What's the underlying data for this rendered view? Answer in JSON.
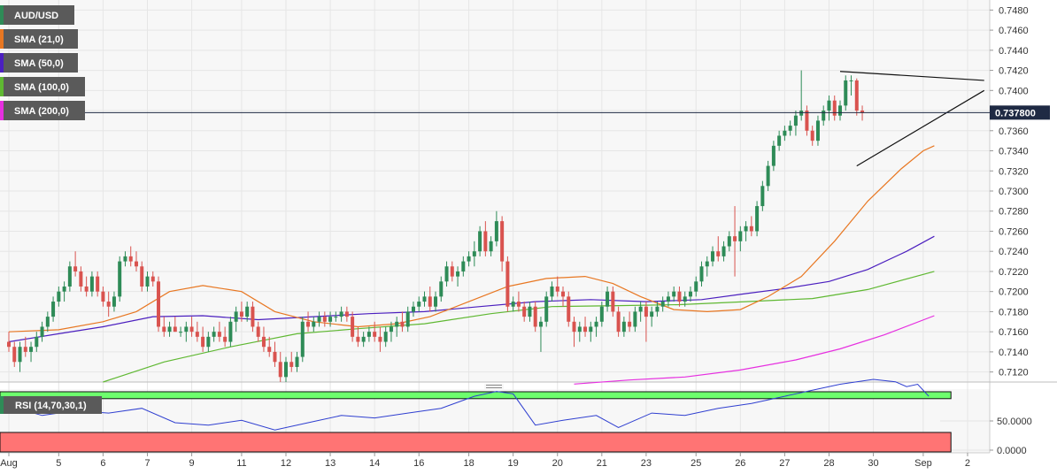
{
  "colors": {
    "up": "#2e8b57",
    "down": "#d9534f",
    "sma21": "#e87722",
    "sma50": "#4b1fbf",
    "sma100": "#5fb832",
    "sma200": "#e62fe0",
    "rsi_line": "#2f3fd0",
    "rsi_upper_band": "#6dff6d",
    "rsi_lower_band": "#ff7474",
    "grid": "#e6e6e6",
    "legend_bg": "#5a5a5a",
    "price_label_bg": "#1f2a44",
    "trendline": "#111111"
  },
  "legend": [
    {
      "label": "AUD/USD",
      "swatch": "#2e8b57"
    },
    {
      "label": "SMA (21,0)",
      "swatch": "#e87722"
    },
    {
      "label": "SMA (50,0)",
      "swatch": "#4b1fbf"
    },
    {
      "label": "SMA (100,0)",
      "swatch": "#5fb832"
    },
    {
      "label": "SMA (200,0)",
      "swatch": "#e62fe0"
    }
  ],
  "current_price": {
    "value": 0.7378,
    "label": "0.737800"
  },
  "rsi_panel": {
    "label": "RSI (14,70,30,1)",
    "tick_labels": [
      "50.0000",
      "0.0000"
    ]
  },
  "chart_data": {
    "type": "candlestick",
    "symbol": "AUD/USD",
    "ylim": [
      0.711,
      0.749
    ],
    "y_ticks": [
      "0.7480",
      "0.7460",
      "0.7440",
      "0.7420",
      "0.7400",
      "0.7380",
      "0.7360",
      "0.7340",
      "0.7320",
      "0.7300",
      "0.7280",
      "0.7260",
      "0.7240",
      "0.7220",
      "0.7200",
      "0.7180",
      "0.7160",
      "0.7140",
      "0.7120"
    ],
    "x_labels": [
      {
        "label": "Aug",
        "index": 0
      },
      {
        "label": "5",
        "index": 9
      },
      {
        "label": "6",
        "index": 17
      },
      {
        "label": "7",
        "index": 25
      },
      {
        "label": "9",
        "index": 33
      },
      {
        "label": "11",
        "index": 42
      },
      {
        "label": "12",
        "index": 50
      },
      {
        "label": "13",
        "index": 58
      },
      {
        "label": "14",
        "index": 66
      },
      {
        "label": "16",
        "index": 74
      },
      {
        "label": "18",
        "index": 83
      },
      {
        "label": "19",
        "index": 91
      },
      {
        "label": "20",
        "index": 99
      },
      {
        "label": "21",
        "index": 107
      },
      {
        "label": "23",
        "index": 115
      },
      {
        "label": "25",
        "index": 124
      },
      {
        "label": "26",
        "index": 132
      },
      {
        "label": "27",
        "index": 140
      },
      {
        "label": "28",
        "index": 148
      },
      {
        "label": "30",
        "index": 156
      },
      {
        "label": "Sep",
        "index": 165
      },
      {
        "label": "2",
        "index": 173
      }
    ],
    "candles": [
      [
        0.715,
        0.716,
        0.714,
        0.7145
      ],
      [
        0.7145,
        0.715,
        0.7125,
        0.713
      ],
      [
        0.713,
        0.715,
        0.712,
        0.7145
      ],
      [
        0.7145,
        0.7155,
        0.7135,
        0.714
      ],
      [
        0.714,
        0.715,
        0.713,
        0.7145
      ],
      [
        0.7145,
        0.716,
        0.714,
        0.7155
      ],
      [
        0.7155,
        0.717,
        0.715,
        0.7165
      ],
      [
        0.7165,
        0.718,
        0.716,
        0.7175
      ],
      [
        0.7175,
        0.7195,
        0.717,
        0.719
      ],
      [
        0.719,
        0.7205,
        0.7185,
        0.72
      ],
      [
        0.72,
        0.721,
        0.719,
        0.7205
      ],
      [
        0.7205,
        0.723,
        0.72,
        0.7225
      ],
      [
        0.7225,
        0.724,
        0.7215,
        0.722
      ],
      [
        0.722,
        0.7225,
        0.72,
        0.7205
      ],
      [
        0.7205,
        0.7215,
        0.7195,
        0.72
      ],
      [
        0.72,
        0.722,
        0.7195,
        0.7215
      ],
      [
        0.7215,
        0.722,
        0.7195,
        0.72
      ],
      [
        0.72,
        0.7205,
        0.7185,
        0.719
      ],
      [
        0.719,
        0.72,
        0.7175,
        0.7185
      ],
      [
        0.7185,
        0.72,
        0.718,
        0.7195
      ],
      [
        0.7195,
        0.7235,
        0.719,
        0.723
      ],
      [
        0.723,
        0.724,
        0.7225,
        0.7235
      ],
      [
        0.7235,
        0.7245,
        0.7225,
        0.723
      ],
      [
        0.723,
        0.724,
        0.722,
        0.7225
      ],
      [
        0.7225,
        0.723,
        0.72,
        0.7205
      ],
      [
        0.7205,
        0.722,
        0.72,
        0.7215
      ],
      [
        0.7215,
        0.722,
        0.7205,
        0.721
      ],
      [
        0.721,
        0.7215,
        0.716,
        0.7165
      ],
      [
        0.7165,
        0.7175,
        0.7155,
        0.716
      ],
      [
        0.716,
        0.717,
        0.7155,
        0.7165
      ],
      [
        0.7165,
        0.7175,
        0.716,
        0.716
      ],
      [
        0.716,
        0.7165,
        0.7155,
        0.716
      ],
      [
        0.716,
        0.717,
        0.715,
        0.7165
      ],
      [
        0.7165,
        0.7175,
        0.7155,
        0.716
      ],
      [
        0.716,
        0.717,
        0.715,
        0.7155
      ],
      [
        0.7155,
        0.7165,
        0.714,
        0.7145
      ],
      [
        0.7145,
        0.716,
        0.714,
        0.7155
      ],
      [
        0.7155,
        0.7165,
        0.715,
        0.716
      ],
      [
        0.716,
        0.717,
        0.715,
        0.7155
      ],
      [
        0.7155,
        0.7165,
        0.7145,
        0.715
      ],
      [
        0.715,
        0.7175,
        0.7145,
        0.717
      ],
      [
        0.717,
        0.7185,
        0.716,
        0.718
      ],
      [
        0.718,
        0.719,
        0.717,
        0.7175
      ],
      [
        0.7175,
        0.719,
        0.717,
        0.7185
      ],
      [
        0.7185,
        0.719,
        0.716,
        0.7165
      ],
      [
        0.7165,
        0.717,
        0.715,
        0.7155
      ],
      [
        0.7155,
        0.7165,
        0.714,
        0.7145
      ],
      [
        0.7145,
        0.7155,
        0.7135,
        0.714
      ],
      [
        0.714,
        0.715,
        0.7125,
        0.713
      ],
      [
        0.713,
        0.714,
        0.711,
        0.7115
      ],
      [
        0.7115,
        0.7135,
        0.711,
        0.713
      ],
      [
        0.713,
        0.714,
        0.712,
        0.7125
      ],
      [
        0.7125,
        0.714,
        0.712,
        0.7135
      ],
      [
        0.7135,
        0.7175,
        0.713,
        0.717
      ],
      [
        0.717,
        0.718,
        0.716,
        0.7165
      ],
      [
        0.7165,
        0.7175,
        0.716,
        0.717
      ],
      [
        0.717,
        0.718,
        0.7165,
        0.7175
      ],
      [
        0.7175,
        0.718,
        0.7165,
        0.717
      ],
      [
        0.717,
        0.718,
        0.7165,
        0.7175
      ],
      [
        0.7175,
        0.718,
        0.717,
        0.7175
      ],
      [
        0.7175,
        0.7185,
        0.717,
        0.718
      ],
      [
        0.718,
        0.7185,
        0.717,
        0.7175
      ],
      [
        0.7175,
        0.718,
        0.715,
        0.7155
      ],
      [
        0.7155,
        0.7165,
        0.7145,
        0.715
      ],
      [
        0.715,
        0.716,
        0.7145,
        0.7155
      ],
      [
        0.7155,
        0.7165,
        0.715,
        0.716
      ],
      [
        0.716,
        0.717,
        0.715,
        0.7155
      ],
      [
        0.7155,
        0.7165,
        0.714,
        0.715
      ],
      [
        0.715,
        0.7165,
        0.7145,
        0.716
      ],
      [
        0.716,
        0.717,
        0.715,
        0.7165
      ],
      [
        0.7165,
        0.7175,
        0.7155,
        0.717
      ],
      [
        0.717,
        0.718,
        0.716,
        0.7165
      ],
      [
        0.7165,
        0.7185,
        0.716,
        0.718
      ],
      [
        0.718,
        0.719,
        0.7175,
        0.7185
      ],
      [
        0.7185,
        0.7195,
        0.718,
        0.719
      ],
      [
        0.719,
        0.72,
        0.7185,
        0.7195
      ],
      [
        0.7195,
        0.7205,
        0.718,
        0.7185
      ],
      [
        0.7185,
        0.72,
        0.718,
        0.7195
      ],
      [
        0.7195,
        0.7215,
        0.719,
        0.721
      ],
      [
        0.721,
        0.723,
        0.7205,
        0.7225
      ],
      [
        0.7225,
        0.723,
        0.721,
        0.7215
      ],
      [
        0.7215,
        0.7225,
        0.7205,
        0.722
      ],
      [
        0.722,
        0.7235,
        0.7215,
        0.723
      ],
      [
        0.723,
        0.724,
        0.7225,
        0.7235
      ],
      [
        0.7235,
        0.725,
        0.7225,
        0.724
      ],
      [
        0.724,
        0.7265,
        0.7235,
        0.726
      ],
      [
        0.726,
        0.727,
        0.7235,
        0.724
      ],
      [
        0.724,
        0.7255,
        0.7235,
        0.725
      ],
      [
        0.725,
        0.728,
        0.7245,
        0.727
      ],
      [
        0.727,
        0.7275,
        0.722,
        0.723
      ],
      [
        0.723,
        0.7235,
        0.718,
        0.7185
      ],
      [
        0.7185,
        0.7195,
        0.718,
        0.719
      ],
      [
        0.719,
        0.72,
        0.718,
        0.7185
      ],
      [
        0.7185,
        0.719,
        0.717,
        0.7175
      ],
      [
        0.7175,
        0.719,
        0.717,
        0.7185
      ],
      [
        0.7185,
        0.719,
        0.716,
        0.7165
      ],
      [
        0.7165,
        0.7175,
        0.714,
        0.717
      ],
      [
        0.717,
        0.72,
        0.7165,
        0.7195
      ],
      [
        0.7195,
        0.721,
        0.719,
        0.7205
      ],
      [
        0.7205,
        0.7215,
        0.7195,
        0.72
      ],
      [
        0.72,
        0.7205,
        0.7185,
        0.7195
      ],
      [
        0.7195,
        0.72,
        0.7165,
        0.717
      ],
      [
        0.717,
        0.7175,
        0.7145,
        0.716
      ],
      [
        0.716,
        0.717,
        0.715,
        0.7165
      ],
      [
        0.7165,
        0.7175,
        0.7155,
        0.716
      ],
      [
        0.716,
        0.717,
        0.715,
        0.7165
      ],
      [
        0.7165,
        0.7175,
        0.7155,
        0.717
      ],
      [
        0.717,
        0.719,
        0.7165,
        0.7185
      ],
      [
        0.7185,
        0.7205,
        0.718,
        0.72
      ],
      [
        0.72,
        0.7205,
        0.7175,
        0.718
      ],
      [
        0.718,
        0.7185,
        0.7155,
        0.716
      ],
      [
        0.716,
        0.7175,
        0.7155,
        0.717
      ],
      [
        0.717,
        0.718,
        0.716,
        0.7165
      ],
      [
        0.7165,
        0.7185,
        0.716,
        0.718
      ],
      [
        0.718,
        0.719,
        0.717,
        0.7185
      ],
      [
        0.7185,
        0.719,
        0.715,
        0.7175
      ],
      [
        0.7175,
        0.7185,
        0.7165,
        0.718
      ],
      [
        0.718,
        0.719,
        0.7175,
        0.7185
      ],
      [
        0.7185,
        0.7195,
        0.718,
        0.719
      ],
      [
        0.719,
        0.72,
        0.7185,
        0.7195
      ],
      [
        0.7195,
        0.7205,
        0.719,
        0.72
      ],
      [
        0.72,
        0.7205,
        0.7185,
        0.719
      ],
      [
        0.719,
        0.72,
        0.7185,
        0.7195
      ],
      [
        0.7195,
        0.7205,
        0.719,
        0.72
      ],
      [
        0.72,
        0.7215,
        0.7195,
        0.721
      ],
      [
        0.721,
        0.723,
        0.7205,
        0.7225
      ],
      [
        0.7225,
        0.7235,
        0.7215,
        0.723
      ],
      [
        0.723,
        0.7245,
        0.7225,
        0.724
      ],
      [
        0.724,
        0.7255,
        0.723,
        0.7235
      ],
      [
        0.7235,
        0.725,
        0.723,
        0.7245
      ],
      [
        0.7245,
        0.726,
        0.724,
        0.7255
      ],
      [
        0.7255,
        0.7285,
        0.7215,
        0.725
      ],
      [
        0.725,
        0.7265,
        0.724,
        0.726
      ],
      [
        0.726,
        0.727,
        0.725,
        0.7265
      ],
      [
        0.7265,
        0.7275,
        0.7255,
        0.726
      ],
      [
        0.726,
        0.729,
        0.7255,
        0.7285
      ],
      [
        0.7285,
        0.731,
        0.728,
        0.7305
      ],
      [
        0.7305,
        0.733,
        0.73,
        0.7325
      ],
      [
        0.7325,
        0.735,
        0.732,
        0.7345
      ],
      [
        0.7345,
        0.736,
        0.734,
        0.7355
      ],
      [
        0.7355,
        0.7365,
        0.735,
        0.736
      ],
      [
        0.736,
        0.737,
        0.7355,
        0.7365
      ],
      [
        0.7365,
        0.738,
        0.7355,
        0.7375
      ],
      [
        0.7375,
        0.742,
        0.737,
        0.738
      ],
      [
        0.738,
        0.7385,
        0.7355,
        0.736
      ],
      [
        0.736,
        0.7365,
        0.7345,
        0.735
      ],
      [
        0.735,
        0.7375,
        0.7345,
        0.737
      ],
      [
        0.737,
        0.7385,
        0.7365,
        0.738
      ],
      [
        0.738,
        0.7395,
        0.737,
        0.739
      ],
      [
        0.739,
        0.7395,
        0.737,
        0.7375
      ],
      [
        0.7375,
        0.739,
        0.737,
        0.7385
      ],
      [
        0.7385,
        0.7415,
        0.738,
        0.741
      ],
      [
        0.741,
        0.7415,
        0.7395,
        0.741
      ],
      [
        0.741,
        0.7412,
        0.7375,
        0.738
      ],
      [
        0.738,
        0.7385,
        0.737,
        0.7378
      ]
    ],
    "sma21": [
      [
        0,
        0.716
      ],
      [
        9,
        0.7162
      ],
      [
        17,
        0.717
      ],
      [
        23,
        0.718
      ],
      [
        29,
        0.72
      ],
      [
        35,
        0.7206
      ],
      [
        42,
        0.72
      ],
      [
        48,
        0.718
      ],
      [
        55,
        0.717
      ],
      [
        63,
        0.7165
      ],
      [
        70,
        0.7168
      ],
      [
        76,
        0.7175
      ],
      [
        83,
        0.719
      ],
      [
        90,
        0.7205
      ],
      [
        97,
        0.7213
      ],
      [
        104,
        0.7215
      ],
      [
        109,
        0.7208
      ],
      [
        114,
        0.7195
      ],
      [
        120,
        0.7182
      ],
      [
        126,
        0.718
      ],
      [
        132,
        0.7182
      ],
      [
        137,
        0.7195
      ],
      [
        143,
        0.7215
      ],
      [
        149,
        0.725
      ],
      [
        155,
        0.729
      ],
      [
        161,
        0.7322
      ],
      [
        165,
        0.734
      ],
      [
        167,
        0.7345
      ]
    ],
    "sma50": [
      [
        0,
        0.715
      ],
      [
        9,
        0.7158
      ],
      [
        17,
        0.7165
      ],
      [
        26,
        0.7175
      ],
      [
        35,
        0.7176
      ],
      [
        45,
        0.7172
      ],
      [
        55,
        0.7175
      ],
      [
        65,
        0.7178
      ],
      [
        75,
        0.718
      ],
      [
        85,
        0.7185
      ],
      [
        95,
        0.719
      ],
      [
        105,
        0.7192
      ],
      [
        115,
        0.719
      ],
      [
        125,
        0.7192
      ],
      [
        133,
        0.7198
      ],
      [
        140,
        0.7203
      ],
      [
        148,
        0.721
      ],
      [
        155,
        0.7222
      ],
      [
        162,
        0.724
      ],
      [
        167,
        0.7255
      ]
    ],
    "sma100": [
      [
        17,
        0.711
      ],
      [
        28,
        0.713
      ],
      [
        40,
        0.7145
      ],
      [
        52,
        0.7158
      ],
      [
        63,
        0.7163
      ],
      [
        75,
        0.7168
      ],
      [
        87,
        0.7178
      ],
      [
        98,
        0.7185
      ],
      [
        110,
        0.7186
      ],
      [
        121,
        0.7187
      ],
      [
        133,
        0.719
      ],
      [
        145,
        0.7193
      ],
      [
        155,
        0.7202
      ],
      [
        167,
        0.722
      ]
    ],
    "sma200": [
      [
        102,
        0.7108
      ],
      [
        112,
        0.7112
      ],
      [
        122,
        0.7115
      ],
      [
        132,
        0.7122
      ],
      [
        142,
        0.7132
      ],
      [
        150,
        0.7143
      ],
      [
        158,
        0.7157
      ],
      [
        167,
        0.7176
      ]
    ],
    "trendlines": [
      {
        "from": [
          150,
          0.7419
        ],
        "to": [
          176,
          0.741
        ]
      },
      {
        "from": [
          153,
          0.7325
        ],
        "to": [
          176,
          0.74
        ]
      }
    ],
    "rsi": [
      [
        0,
        64
      ],
      [
        6,
        56
      ],
      [
        12,
        60
      ],
      [
        18,
        58
      ],
      [
        24,
        62
      ],
      [
        30,
        50
      ],
      [
        36,
        48
      ],
      [
        42,
        52
      ],
      [
        48,
        44
      ],
      [
        54,
        50
      ],
      [
        60,
        56
      ],
      [
        66,
        54
      ],
      [
        72,
        58
      ],
      [
        78,
        62
      ],
      [
        84,
        72
      ],
      [
        88,
        76
      ],
      [
        91,
        74
      ],
      [
        95,
        48
      ],
      [
        100,
        52
      ],
      [
        106,
        56
      ],
      [
        110,
        46
      ],
      [
        116,
        58
      ],
      [
        122,
        56
      ],
      [
        128,
        62
      ],
      [
        134,
        66
      ],
      [
        140,
        72
      ],
      [
        146,
        78
      ],
      [
        150,
        82
      ],
      [
        156,
        86
      ],
      [
        160,
        84
      ],
      [
        162,
        80
      ],
      [
        164,
        82
      ],
      [
        166,
        72
      ]
    ],
    "rsi_ylim": [
      0,
      100
    ],
    "rsi_bands": {
      "upper": 70,
      "lower": 30
    }
  }
}
